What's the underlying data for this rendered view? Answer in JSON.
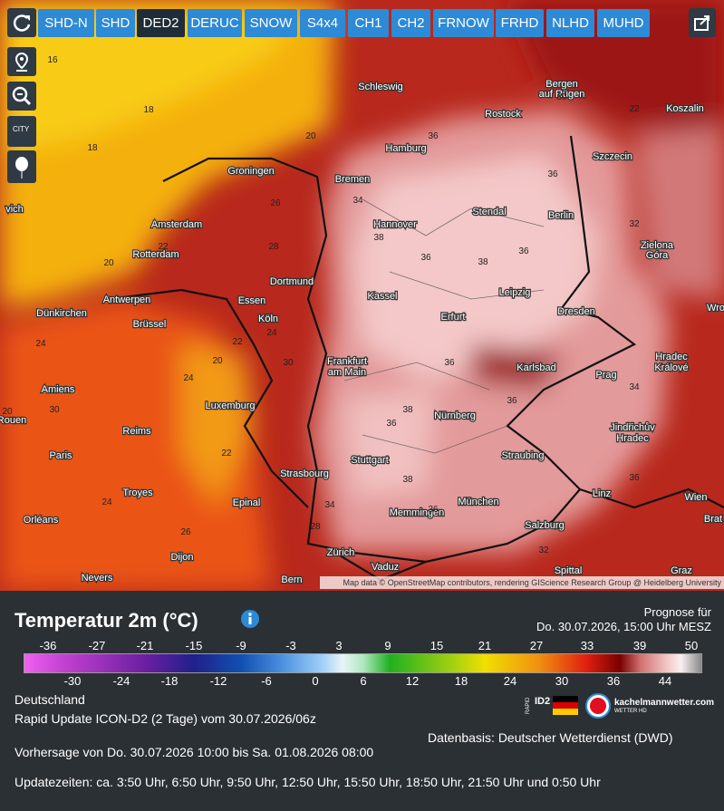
{
  "toolbar": {
    "buttons": [
      "SHD-N",
      "SHD",
      "DED2",
      "DERUC",
      "SNOW",
      "S4x4",
      "CH1",
      "CH2",
      "FRNOW",
      "FRHD",
      "NLHD",
      "MUHD"
    ]
  },
  "sidebar": {
    "city_button": "CITY"
  },
  "map": {
    "cities": [
      "Schleswig",
      "Bergen",
      "auf Rügen",
      "Rostock",
      "Koszalin",
      "Hamburg",
      "Szczecin",
      "Groningen",
      "Bremen",
      "Amsterdam",
      "Hannover",
      "Stendal",
      "Berlin",
      "Zielona",
      "Góra",
      "Rotterdam",
      "Dortmund",
      "Essen",
      "Antwerpen",
      "Kassel",
      "Leipzig",
      "Dünkirchen",
      "Brüssel",
      "Köln",
      "Erfurt",
      "Dresden",
      "Frankfurt",
      "am Main",
      "Hradec",
      "Králové",
      "Karlsbad",
      "Prag",
      "Amiens",
      "Luxemburg",
      "Nürnberg",
      "Jindřichův",
      "Hradec",
      "Reims",
      "Paris",
      "Stuttgart",
      "Straubing",
      "Strasbourg",
      "Troyes",
      "München",
      "Wien",
      "Epinal",
      "Linz",
      "Memmingen",
      "Orléans",
      "Salzburg",
      "Zürich",
      "Dijon",
      "Vaduz",
      "Nevers",
      "Bern",
      "Spittal",
      "Graz",
      "Brat",
      "Wro",
      "Rouen",
      "vich"
    ],
    "temperatures": [
      16,
      18,
      18,
      20,
      20,
      20,
      22,
      22,
      22,
      24,
      24,
      24,
      26,
      28,
      30,
      34,
      36,
      36,
      36,
      36,
      36,
      36,
      36,
      36,
      36,
      38,
      38,
      38,
      38,
      32,
      30,
      22,
      34,
      28,
      26,
      24,
      20,
      30,
      34,
      32
    ],
    "attribution": "Map data © OpenStreetMap contributors, rendering GIScience Research Group @ Heidelberg University"
  },
  "legend": {
    "title": "Temperatur 2m (°C)",
    "forecast_label": "Prognose für",
    "forecast_time": "Do. 30.07.2026, 15:00 Uhr MESZ",
    "top_ticks": [
      -36,
      -27,
      -21,
      -15,
      -9,
      -3,
      3,
      9,
      15,
      21,
      27,
      33,
      39,
      50
    ],
    "bottom_ticks": [
      -30,
      -24,
      -18,
      -12,
      -6,
      0,
      6,
      12,
      18,
      24,
      30,
      36,
      44
    ]
  },
  "info": {
    "region": "Deutschland",
    "model": "Rapid Update ICON-D2 (2 Tage) vom 30.07.2026/06z",
    "source": "Datenbasis: Deutscher Wetterdienst (DWD)",
    "range": "Vorhersage von Do. 30.07.2026 10:00 bis Sa. 01.08.2026 08:00",
    "updates": "Updatezeiten: ca. 3:50 Uhr, 6:50 Uhr, 9:50 Uhr, 12:50 Uhr, 15:50 Uhr, 18:50 Uhr, 21:50 Uhr und 0:50 Uhr"
  },
  "logos": {
    "rapid": "RAPID",
    "id2": "ID2",
    "brand": "kachelmannwetter.com",
    "sub": "WETTER HD"
  }
}
